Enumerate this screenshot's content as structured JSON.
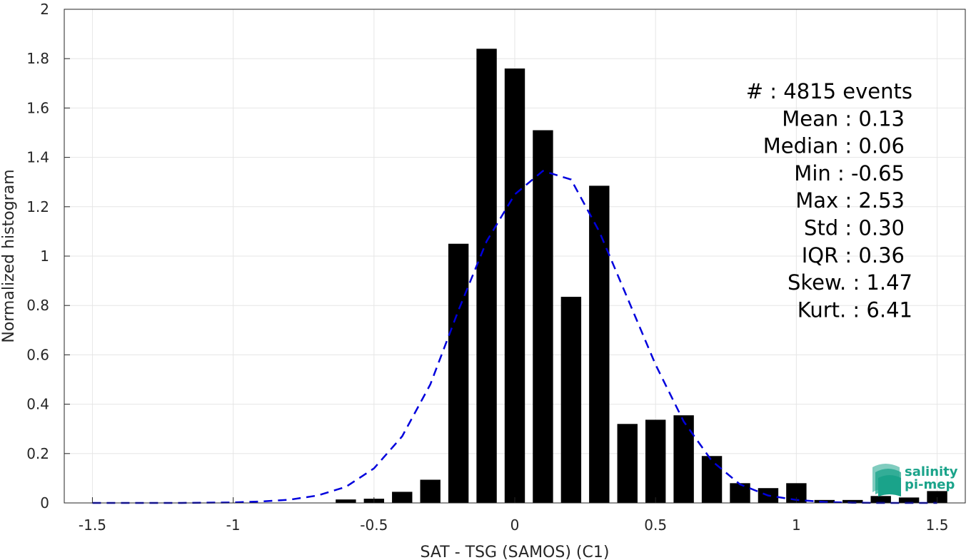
{
  "chart_data": {
    "type": "bar",
    "xlabel": "SAT - TSG (SAMOS) (C1)",
    "ylabel": "Normalized histogram",
    "xlim": [
      -1.6,
      1.6
    ],
    "ylim": [
      0,
      2
    ],
    "grid": true,
    "x_ticks": [
      "-1.5",
      "-1",
      "-0.5",
      "0",
      "0.5",
      "1",
      "1.5"
    ],
    "y_ticks": [
      "0",
      "0.2",
      "0.4",
      "0.6",
      "0.8",
      "1",
      "1.2",
      "1.4",
      "1.6",
      "1.8",
      "2"
    ],
    "bar_centers": [
      -0.6,
      -0.5,
      -0.4,
      -0.3,
      -0.2,
      -0.1,
      0.0,
      0.1,
      0.2,
      0.3,
      0.4,
      0.5,
      0.6,
      0.7,
      0.8,
      0.9,
      1.0,
      1.1,
      1.2,
      1.3,
      1.4,
      1.5
    ],
    "values": [
      0.014,
      0.017,
      0.045,
      0.094,
      1.05,
      1.84,
      1.76,
      1.51,
      0.835,
      1.285,
      0.32,
      0.337,
      0.355,
      0.19,
      0.08,
      0.06,
      0.08,
      0.012,
      0.012,
      0.028,
      0.022,
      0.048
    ],
    "bar_color": "#000000",
    "fit_curve": {
      "style": "dashed",
      "color": "#0000dd",
      "x": [
        -1.5,
        -1.4,
        -1.3,
        -1.2,
        -1.1,
        -1.0,
        -0.9,
        -0.8,
        -0.7,
        -0.6,
        -0.5,
        -0.4,
        -0.3,
        -0.2,
        -0.1,
        0.0,
        0.1,
        0.2,
        0.3,
        0.4,
        0.5,
        0.6,
        0.7,
        0.8,
        0.9,
        1.0,
        1.1,
        1.2,
        1.3,
        1.4,
        1.5
      ],
      "y": [
        0.0,
        0.0,
        0.0,
        0.0,
        0.001,
        0.002,
        0.006,
        0.013,
        0.03,
        0.065,
        0.14,
        0.27,
        0.48,
        0.78,
        1.06,
        1.25,
        1.345,
        1.31,
        1.1,
        0.83,
        0.56,
        0.33,
        0.17,
        0.075,
        0.03,
        0.012,
        0.004,
        0.001,
        0.0,
        0.0,
        0.0
      ]
    },
    "stats": [
      "#  : 4815 events",
      "Mean : 0.13",
      "Median : 0.06",
      "Min : -0.65",
      "Max : 2.53",
      "Std : 0.30",
      "IQR : 0.36",
      "Skew. : 1.47",
      "Kurt. : 6.41"
    ],
    "stats_placement": "top-right"
  },
  "logo": {
    "line1": "salinity",
    "line2": "pi-mep",
    "color": "#1aa38a"
  }
}
